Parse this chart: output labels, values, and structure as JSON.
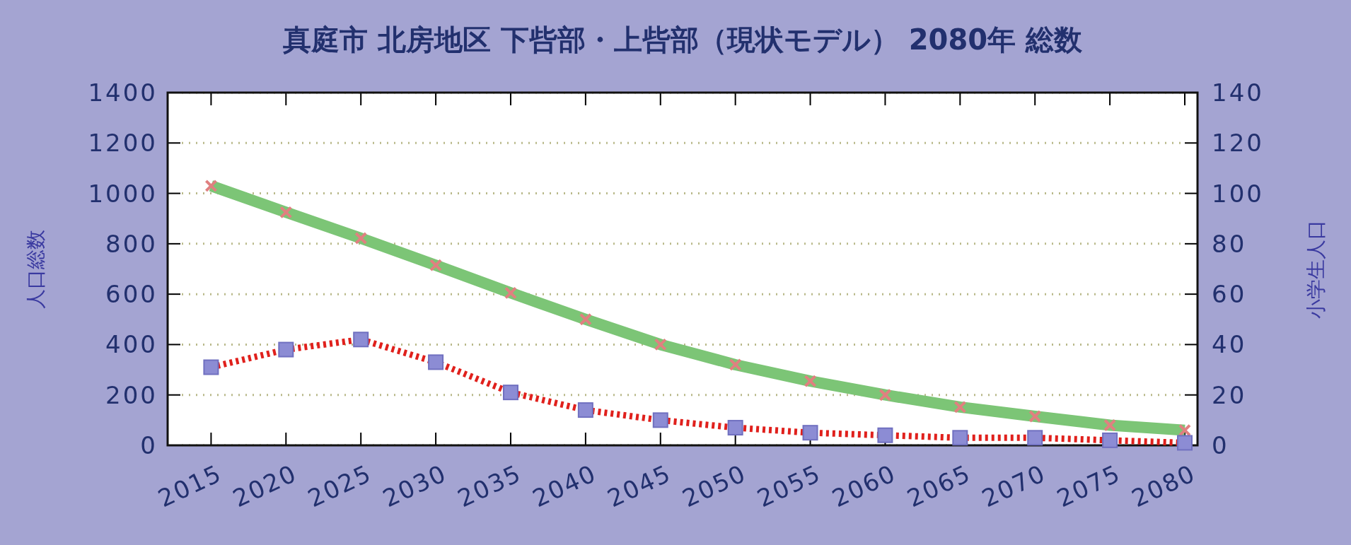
{
  "chart_data": {
    "type": "line",
    "title": "真庭市 北房地区 下呰部・上呰部（現状モデル） 2080年 総数",
    "ylabel": "人口総数",
    "y2label": "小学生人口",
    "categories": [
      "2015",
      "2020",
      "2025",
      "2030",
      "2035",
      "2040",
      "2045",
      "2050",
      "2055",
      "2060",
      "2065",
      "2070",
      "2075",
      "2080"
    ],
    "series": [
      {
        "color": "#7cc576",
        "marker": "cross",
        "line_style": "solid",
        "values": [
          1030,
          925,
          822,
          715,
          605,
          500,
          400,
          320,
          255,
          200,
          152,
          115,
          80,
          60
        ]
      },
      {
        "color": "#e0201c",
        "marker": "square",
        "line_style": "dotted",
        "axis": "y2",
        "values": [
          31,
          38,
          42,
          33,
          21,
          14,
          10,
          7,
          5,
          4,
          3,
          3,
          2,
          1
        ]
      }
    ],
    "ylim": [
      0,
      1400
    ],
    "yticks": [
      0,
      200,
      400,
      600,
      800,
      1000,
      1200,
      1400
    ],
    "y2lim": [
      0,
      140
    ],
    "y2ticks": [
      0,
      20,
      40,
      60,
      80,
      100,
      120,
      140
    ],
    "grid": "y"
  }
}
